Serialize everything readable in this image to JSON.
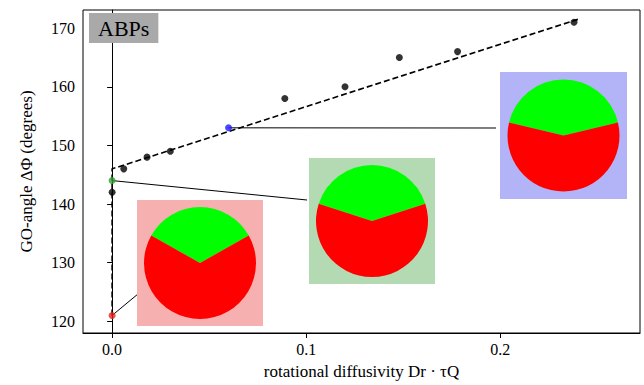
{
  "chart_data": {
    "type": "scatter",
    "annotation": "ABPs",
    "x_label": "rotational diffusivity Dr · τQ",
    "y_label": "GO-angle ΔΦ (degrees)",
    "xlim": [
      -0.015,
      0.272
    ],
    "ylim": [
      118,
      173.1
    ],
    "xticks": [
      {
        "value": 0,
        "label": "0.0"
      },
      {
        "value": 0.1,
        "label": "0.1"
      },
      {
        "value": 0.2,
        "label": "0.2"
      }
    ],
    "yticks": [
      120,
      130,
      140,
      150,
      160,
      170
    ],
    "grid": false,
    "series": [
      {
        "type": "line",
        "line_style": "dashed",
        "color": "#000000",
        "x": [
          0,
          0,
          0.24
        ],
        "values": [
          121,
          146,
          171.5
        ]
      },
      {
        "type": "scatter",
        "marker": "circle",
        "x": [
          0,
          0,
          0,
          0.006,
          0.018,
          0.03,
          0.06,
          0.089,
          0.12,
          0.148,
          0.178,
          0.238
        ],
        "values": [
          121,
          144,
          142,
          146,
          148,
          149,
          153,
          158,
          160,
          165,
          166,
          171
        ],
        "colors": [
          "#e8201a",
          "#2ca02c",
          "#000000",
          "#000000",
          "#000000",
          "#000000",
          "#1a1aff",
          "#000000",
          "#000000",
          "#000000",
          "#000000",
          "#000000"
        ]
      }
    ],
    "insets": [
      {
        "x": 0,
        "y": 121,
        "background": "#f7b0b0",
        "upper_color": "#00ff00",
        "lower_color": "#ff0000"
      },
      {
        "x": 0,
        "y": 144,
        "background": "#b3dab3",
        "upper_color": "#00ff00",
        "lower_color": "#ff0000"
      },
      {
        "x": 0.06,
        "y": 153,
        "background": "#b3b3f7",
        "upper_color": "#00ff00",
        "lower_color": "#ff0000"
      }
    ]
  }
}
